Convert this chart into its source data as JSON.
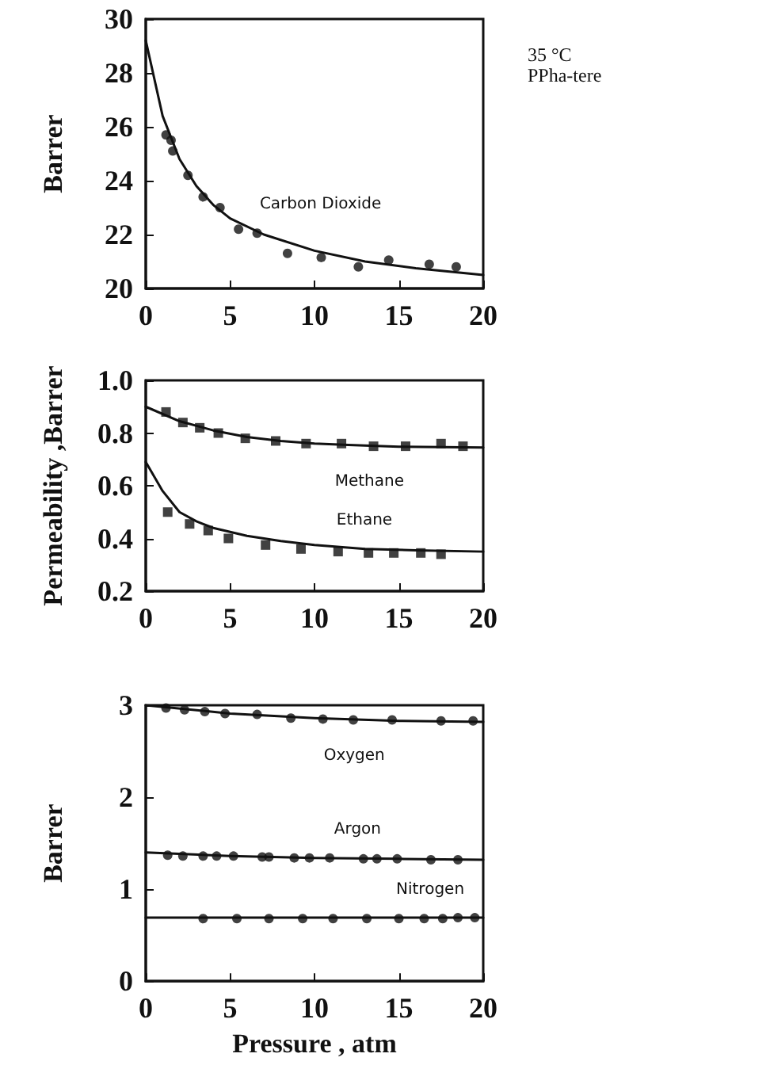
{
  "chart_data": [
    {
      "type": "scatter",
      "ylabel": "Barrer",
      "xlim": [
        0,
        20
      ],
      "xticks": [
        0,
        5,
        10,
        15,
        20
      ],
      "ylim": [
        20,
        30
      ],
      "yticks": [
        20,
        22,
        24,
        26,
        28,
        30
      ],
      "grid": false,
      "annotations": [
        "35 °C\nPPha-tere"
      ],
      "series": [
        {
          "name": "Carbon Dioxide",
          "marker": "circle",
          "color": "#111111",
          "x": [
            1.2,
            1.5,
            1.6,
            2.5,
            3.4,
            4.4,
            5.5,
            6.6,
            8.4,
            10.4,
            12.6,
            14.4,
            16.8,
            18.4
          ],
          "values": [
            25.7,
            25.5,
            25.1,
            24.2,
            23.4,
            23.0,
            22.2,
            22.05,
            21.3,
            21.15,
            20.8,
            21.05,
            20.9,
            20.8
          ]
        },
        {
          "type": "line",
          "marker": "none",
          "line_style": "solid",
          "color": "#111111",
          "x": [
            0,
            1,
            2,
            3,
            4,
            5,
            7,
            10,
            13,
            16,
            20
          ],
          "values": [
            29.2,
            26.4,
            24.8,
            23.8,
            23.1,
            22.6,
            22.0,
            21.4,
            21.0,
            20.75,
            20.5
          ]
        }
      ]
    },
    {
      "type": "scatter",
      "ylabel": "Permeability ,Barrer",
      "xlim": [
        0,
        20
      ],
      "xticks": [
        0,
        5,
        10,
        15,
        20
      ],
      "ylim": [
        0.2,
        1.0
      ],
      "yticks": [
        0.2,
        0.4,
        0.6,
        0.8,
        {
          "value": 1.0,
          "label": "1.0"
        }
      ],
      "grid": false,
      "series": [
        {
          "name": "Methane",
          "marker": "square",
          "color": "#111111",
          "x": [
            1.2,
            2.2,
            3.2,
            4.3,
            5.9,
            7.7,
            9.5,
            11.6,
            13.5,
            15.4,
            17.5,
            18.8
          ],
          "values": [
            0.88,
            0.84,
            0.82,
            0.8,
            0.78,
            0.77,
            0.76,
            0.76,
            0.75,
            0.75,
            0.76,
            0.75
          ]
        },
        {
          "type": "line",
          "marker": "none",
          "line_style": "solid",
          "color": "#111111",
          "x": [
            0,
            2,
            4,
            6,
            8,
            10,
            12,
            15,
            20
          ],
          "values": [
            0.9,
            0.845,
            0.81,
            0.785,
            0.77,
            0.76,
            0.755,
            0.748,
            0.745
          ]
        },
        {
          "name": "Ethane",
          "marker": "square",
          "color": "#111111",
          "x": [
            1.3,
            2.6,
            3.7,
            4.9,
            7.1,
            9.2,
            11.4,
            13.2,
            14.7,
            16.3,
            17.5
          ],
          "values": [
            0.5,
            0.455,
            0.43,
            0.4,
            0.375,
            0.36,
            0.35,
            0.345,
            0.345,
            0.345,
            0.34
          ]
        },
        {
          "type": "line",
          "marker": "none",
          "line_style": "solid",
          "color": "#111111",
          "x": [
            0,
            1,
            2,
            3,
            4,
            6,
            8,
            10,
            13,
            16,
            20
          ],
          "values": [
            0.69,
            0.58,
            0.5,
            0.465,
            0.44,
            0.41,
            0.39,
            0.375,
            0.36,
            0.355,
            0.35
          ]
        }
      ]
    },
    {
      "type": "scatter",
      "ylabel": "Barrer",
      "xlabel": "Pressure , atm",
      "xlim": [
        0,
        20
      ],
      "xticks": [
        0,
        5,
        10,
        15,
        20
      ],
      "ylim": [
        0,
        3
      ],
      "yticks": [
        0,
        1,
        2,
        3
      ],
      "grid": false,
      "series": [
        {
          "name": "Oxygen",
          "marker": "circle",
          "color": "#111111",
          "x": [
            1.2,
            2.3,
            3.5,
            4.7,
            6.6,
            8.6,
            10.5,
            12.3,
            14.6,
            17.5,
            19.4
          ],
          "values": [
            2.97,
            2.95,
            2.93,
            2.91,
            2.9,
            2.86,
            2.85,
            2.84,
            2.84,
            2.83,
            2.83
          ]
        },
        {
          "type": "line",
          "marker": "none",
          "line_style": "solid",
          "color": "#111111",
          "x": [
            0,
            5,
            10,
            15,
            20
          ],
          "values": [
            3.0,
            2.91,
            2.86,
            2.83,
            2.82
          ]
        },
        {
          "name": "Argon",
          "marker": "circle",
          "color": "#111111",
          "x": [
            1.3,
            2.2,
            3.4,
            4.2,
            5.2,
            6.9,
            7.3,
            8.8,
            9.7,
            10.9,
            12.9,
            13.7,
            14.9,
            16.9,
            18.5
          ],
          "values": [
            1.37,
            1.36,
            1.36,
            1.36,
            1.36,
            1.35,
            1.35,
            1.34,
            1.34,
            1.34,
            1.33,
            1.33,
            1.33,
            1.32,
            1.32
          ]
        },
        {
          "type": "line",
          "marker": "none",
          "line_style": "solid",
          "color": "#111111",
          "x": [
            0,
            5,
            10,
            15,
            20
          ],
          "values": [
            1.4,
            1.36,
            1.34,
            1.33,
            1.32
          ]
        },
        {
          "name": "Nitrogen",
          "marker": "circle",
          "color": "#111111",
          "x": [
            3.4,
            5.4,
            7.3,
            9.3,
            11.1,
            13.1,
            15.0,
            16.5,
            17.6,
            18.5,
            19.5
          ],
          "values": [
            0.68,
            0.68,
            0.68,
            0.68,
            0.68,
            0.68,
            0.68,
            0.68,
            0.68,
            0.69,
            0.69
          ]
        },
        {
          "type": "line",
          "marker": "none",
          "line_style": "solid",
          "color": "#111111",
          "x": [
            0,
            20
          ],
          "values": [
            0.69,
            0.69
          ]
        }
      ]
    }
  ]
}
